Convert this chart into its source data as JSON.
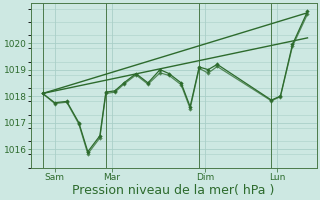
{
  "bg_color": "#cde8e2",
  "grid_color": "#aacfc8",
  "line_color": "#2d6b2d",
  "xlabel": "Pression niveau de la mer( hPa )",
  "xlabel_fontsize": 9,
  "ylim": [
    1015.3,
    1021.5
  ],
  "yticks": [
    1016,
    1017,
    1018,
    1019,
    1020
  ],
  "xlim": [
    0,
    9.5
  ],
  "xtick_positions": [
    0.8,
    2.7,
    5.8,
    8.2
  ],
  "xtick_labels": [
    "Sam",
    "Mar",
    "Dim",
    "Lun"
  ],
  "vline_positions": [
    0.4,
    2.5,
    5.6,
    8.0
  ],
  "series_main": {
    "x": [
      0.4,
      0.8,
      1.2,
      1.6,
      1.9,
      2.3,
      2.5,
      2.8,
      3.1,
      3.5,
      3.9,
      4.3,
      4.6,
      5.0,
      5.3,
      5.6,
      5.9,
      6.2,
      8.0,
      8.3,
      8.7,
      9.2
    ],
    "y": [
      1018.1,
      1017.75,
      1017.8,
      1017.0,
      1015.9,
      1016.5,
      1018.15,
      1018.2,
      1018.5,
      1018.85,
      1018.5,
      1019.0,
      1018.85,
      1018.5,
      1017.6,
      1019.1,
      1019.0,
      1019.2,
      1017.85,
      1018.0,
      1019.95,
      1021.2
    ]
  },
  "series2": {
    "x": [
      0.4,
      0.8,
      1.2,
      1.6,
      1.9,
      2.3,
      2.5,
      2.8,
      3.1,
      3.5,
      3.9,
      4.3,
      4.6,
      5.0,
      5.3,
      5.6,
      5.9,
      6.2,
      8.0,
      8.3,
      8.7,
      9.2
    ],
    "y": [
      1018.1,
      1017.72,
      1017.77,
      1016.95,
      1015.82,
      1016.42,
      1018.1,
      1018.15,
      1018.45,
      1018.8,
      1018.45,
      1018.88,
      1018.78,
      1018.43,
      1017.53,
      1019.05,
      1018.87,
      1019.12,
      1017.82,
      1017.98,
      1019.88,
      1021.1
    ]
  },
  "trend1": {
    "x": [
      0.4,
      9.2
    ],
    "y": [
      1018.1,
      1021.15
    ]
  },
  "trend2": {
    "x": [
      0.4,
      9.2
    ],
    "y": [
      1018.1,
      1020.2
    ]
  },
  "figsize": [
    3.2,
    2.0
  ],
  "dpi": 100
}
